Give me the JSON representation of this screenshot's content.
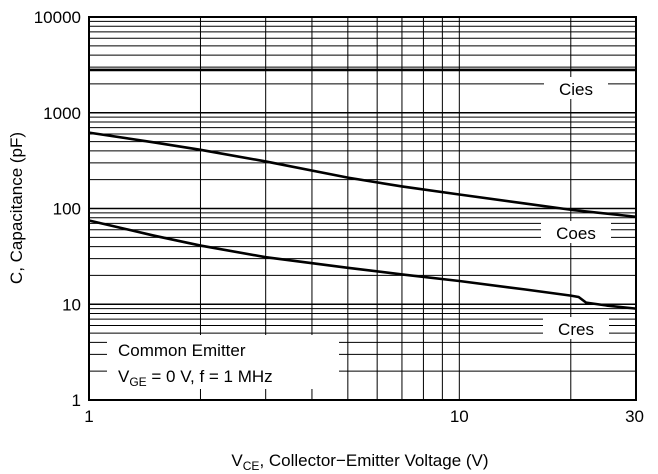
{
  "chart_data": {
    "type": "line",
    "xlabel_main": "V",
    "xlabel_sub": "CE",
    "xlabel_rest": ", Collector−Emitter Voltage (V)",
    "ylabel": "C, Capacitance (pF)",
    "xscale": "log",
    "yscale": "log",
    "xlim": [
      1,
      30
    ],
    "ylim": [
      1,
      10000
    ],
    "x_tick_labels": [
      {
        "value": 1,
        "label": "1"
      },
      {
        "value": 10,
        "label": "10"
      },
      {
        "value": 30,
        "label": "30"
      }
    ],
    "y_tick_labels": [
      {
        "value": 1,
        "label": "1"
      },
      {
        "value": 10,
        "label": "10"
      },
      {
        "value": 100,
        "label": "100"
      },
      {
        "value": 1000,
        "label": "1000"
      },
      {
        "value": 10000,
        "label": "10000"
      }
    ],
    "grid": true,
    "series": [
      {
        "name": "Cies",
        "x": [
          1,
          2,
          5,
          10,
          20,
          30
        ],
        "y": [
          2800,
          2800,
          2800,
          2800,
          2800,
          2800
        ]
      },
      {
        "name": "Coes",
        "x": [
          1,
          1.5,
          2,
          3,
          5,
          7,
          10,
          15,
          20,
          30
        ],
        "y": [
          620,
          490,
          410,
          310,
          210,
          170,
          140,
          113,
          97,
          82
        ]
      },
      {
        "name": "Cres",
        "x": [
          1,
          1.5,
          2,
          3,
          5,
          7,
          10,
          15,
          20,
          21,
          22,
          25,
          30
        ],
        "y": [
          75,
          52,
          41,
          31,
          24,
          20.5,
          17.5,
          14.3,
          12.3,
          11.9,
          10.4,
          9.7,
          9.0
        ]
      }
    ],
    "legend": {
      "placement": "bottom-left",
      "line1": "Common Emitter",
      "line2_main": "V",
      "line2_sub": "GE",
      "line2_rest": " = 0 V, f = 1 MHz"
    }
  }
}
